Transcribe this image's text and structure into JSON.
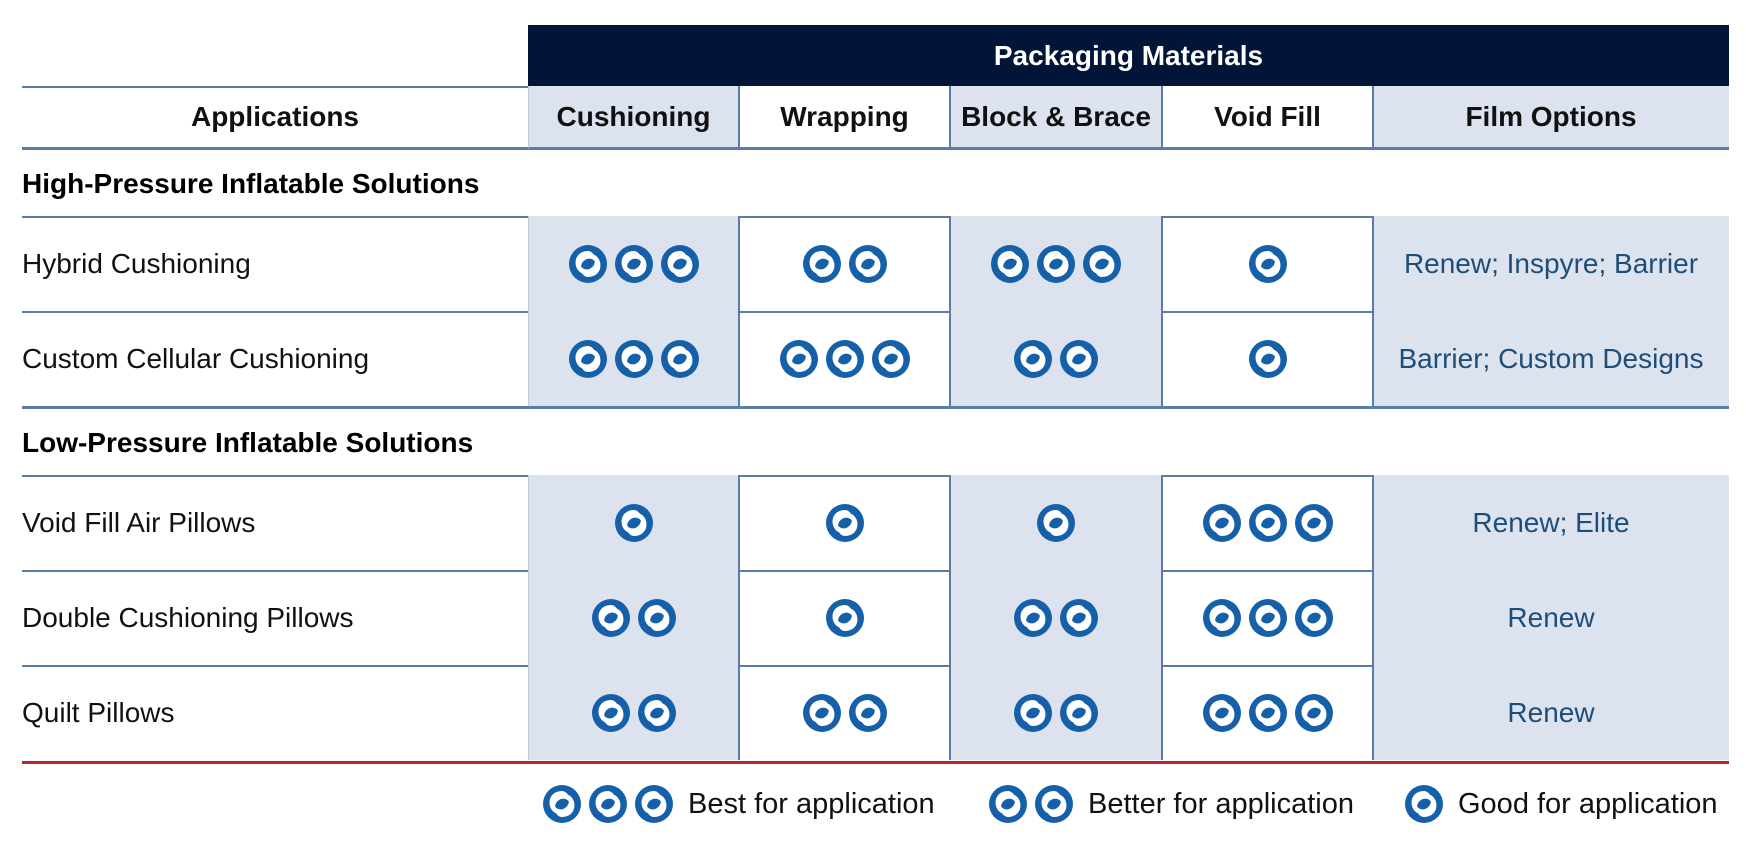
{
  "banner": "Packaging Materials",
  "headers": {
    "applications": "Applications",
    "cushioning": "Cushioning",
    "wrapping": "Wrapping",
    "block_brace": "Block & Brace",
    "void_fill": "Void Fill",
    "film_options": "Film Options"
  },
  "sections": [
    {
      "title": "High-Pressure Inflatable Solutions",
      "rows": [
        {
          "label": "Hybrid Cushioning",
          "ratings": [
            3,
            2,
            3,
            1
          ],
          "film": "Renew; Inspyre; Barrier"
        },
        {
          "label": "Custom Cellular Cushioning",
          "ratings": [
            3,
            3,
            2,
            1
          ],
          "film": "Barrier; Custom Designs"
        }
      ]
    },
    {
      "title": "Low-Pressure Inflatable Solutions",
      "rows": [
        {
          "label": "Void Fill Air Pillows",
          "ratings": [
            1,
            1,
            1,
            3
          ],
          "film": "Renew; Elite"
        },
        {
          "label": "Double Cushioning Pillows",
          "ratings": [
            2,
            1,
            2,
            3
          ],
          "film": "Renew"
        },
        {
          "label": "Quilt Pillows",
          "ratings": [
            2,
            2,
            2,
            3
          ],
          "film": "Renew"
        }
      ]
    }
  ],
  "legend": {
    "best": "Best for application",
    "better": "Better for application",
    "good": "Good for application"
  },
  "colors": {
    "banner": "#001538",
    "icon": "#1560a8",
    "shade": "#dde2ef",
    "rule": "#5a7da8",
    "bottom_rule": "#b5272d"
  },
  "icon_name": "swirl-rating-icon"
}
